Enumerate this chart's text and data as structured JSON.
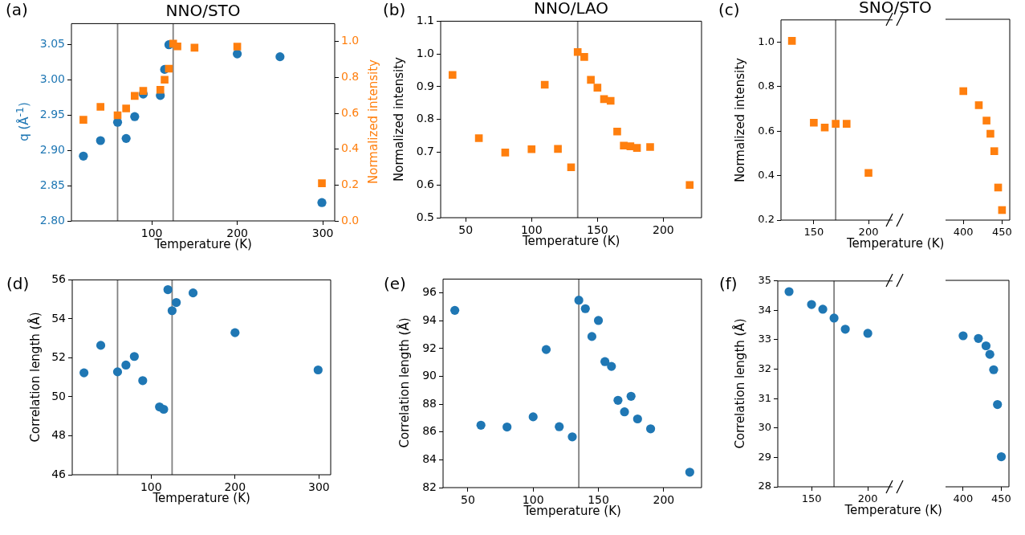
{
  "chart_data": [
    {
      "type": "scatter",
      "title": "NNO/STO",
      "xlabel": "Temperature (K)",
      "ylabel": "q (Å$^{-1}$)",
      "y2label": "Normalized intensity",
      "annotations": [
        "(a)"
      ],
      "xlim": [
        6,
        314
      ],
      "xticks": [
        100,
        200,
        300
      ],
      "ylim": [
        2.8,
        3.08
      ],
      "yticks": [
        {
          "value": 2.8,
          "label": "2.80"
        },
        2.85,
        {
          "value": 2.9,
          "label": "2.90"
        },
        2.95,
        {
          "value": 3,
          "label": "3.00"
        },
        3.05
      ],
      "y2lim": [
        0,
        1.1
      ],
      "y2ticks": [
        {
          "value": 0,
          "label": "0.0"
        },
        0.2,
        0.4,
        0.6,
        0.8,
        {
          "value": 1,
          "label": "1.0"
        }
      ],
      "ref_lines": [
        {
          "axis": "x",
          "value": 60,
          "color": "#808080"
        },
        {
          "axis": "x",
          "value": 125,
          "color": "#808080"
        }
      ],
      "series": [
        {
          "color": "#1f77b4",
          "marker": "circle",
          "x": [
            20,
            40,
            60,
            70,
            80,
            90,
            110,
            115,
            120,
            150,
            200,
            250,
            299
          ],
          "values": [
            2.892,
            2.914,
            2.94,
            2.917,
            2.948,
            2.98,
            2.978,
            3.015,
            3.05,
            null,
            3.037,
            3.033,
            2.826
          ]
        },
        {
          "color": "#ff7f0e",
          "marker": "square",
          "axis": "y2",
          "x": [
            20,
            40,
            60,
            70,
            80,
            90,
            110,
            115,
            120,
            125,
            130,
            150,
            200,
            299
          ],
          "values": [
            0.564,
            0.636,
            0.589,
            0.627,
            0.697,
            0.725,
            0.731,
            0.787,
            0.849,
            0.988,
            0.973,
            0.966,
            0.972,
            0.21
          ]
        }
      ]
    },
    {
      "type": "scatter",
      "title": "NNO/LAO",
      "xlabel": "Temperature (K)",
      "ylabel": "Normalized intensity",
      "annotations": [
        "(b)"
      ],
      "xlim": [
        31,
        229
      ],
      "xticks": [
        50,
        100,
        150,
        200
      ],
      "ylim": [
        0.5,
        1.1
      ],
      "yticks": [
        0.5,
        0.6,
        0.7,
        0.8,
        0.9,
        {
          "value": 1,
          "label": "1.0"
        },
        1.1
      ],
      "ref_lines": [
        {
          "axis": "x",
          "value": 135,
          "color": "#808080"
        }
      ],
      "x": [
        40,
        60,
        80,
        100,
        110,
        120,
        130,
        135,
        140,
        145,
        150,
        155,
        160,
        165,
        170,
        175,
        180,
        190,
        220
      ],
      "series": [
        {
          "color": "#ff7f0e",
          "marker": "square",
          "values": [
            0.936,
            0.743,
            0.699,
            0.709,
            0.906,
            0.71,
            0.654,
            1.006,
            0.991,
            0.921,
            0.897,
            0.862,
            0.857,
            0.763,
            0.72,
            0.718,
            0.713,
            0.716,
            0.6
          ]
        }
      ]
    },
    {
      "type": "scatter",
      "title": "SNO/STO",
      "xlabel": "Temperature (K)",
      "ylabel": "Normalized intensity",
      "annotations": [
        "(c)"
      ],
      "xlim": [
        120,
        222
      ],
      "xticks": [
        150,
        200
      ],
      "ylim": [
        0.2,
        1.1
      ],
      "yticks": [
        0.2,
        0.4,
        0.6,
        0.8,
        {
          "value": 1,
          "label": "1.0"
        }
      ],
      "ref_lines": [
        {
          "axis": "x",
          "value": 170,
          "color": "#808080"
        }
      ],
      "x": [
        130,
        150,
        160,
        170,
        180,
        200
      ],
      "series": [
        {
          "color": "#ff7f0e",
          "marker": "square",
          "values": [
            1.006,
            0.638,
            0.616,
            0.633,
            0.633,
            0.412
          ]
        }
      ]
    },
    {
      "type": "scatter",
      "tick_labels": "x",
      "xlim": [
        377,
        460
      ],
      "xticks": [
        400,
        450
      ],
      "ylim": [
        0.2,
        1.1
      ],
      "x": [
        400,
        420,
        430,
        435,
        440,
        445,
        450
      ],
      "series": [
        {
          "color": "#ff7f0e",
          "marker": "square",
          "values": [
            0.778,
            0.715,
            0.646,
            0.587,
            0.509,
            0.346,
            0.245
          ]
        }
      ]
    },
    {
      "type": "scatter",
      "xlabel": "Temperature (K)",
      "ylabel": "Correlation length (Å)",
      "annotations": [
        "(d)"
      ],
      "xlim": [
        6,
        314
      ],
      "xticks": [
        100,
        200,
        300
      ],
      "ylim": [
        46,
        56
      ],
      "yticks": [
        46,
        48,
        50,
        52,
        54,
        56
      ],
      "ref_lines": [
        {
          "axis": "x",
          "value": 60,
          "color": "#808080"
        },
        {
          "axis": "x",
          "value": 125,
          "color": "#808080"
        }
      ],
      "x": [
        20,
        40,
        60,
        70,
        80,
        90,
        110,
        115,
        120,
        125,
        130,
        150,
        200,
        299
      ],
      "series": [
        {
          "color": "#1f77b4",
          "marker": "circle",
          "values": [
            51.23,
            52.64,
            51.28,
            51.63,
            52.07,
            50.83,
            49.48,
            49.36,
            55.5,
            54.42,
            54.84,
            55.33,
            53.29,
            51.38
          ]
        }
      ]
    },
    {
      "type": "scatter",
      "xlabel": "Temperature (K)",
      "ylabel": "Correlation length (Å)",
      "annotations": [
        "(e)"
      ],
      "xlim": [
        31,
        229
      ],
      "xticks": [
        50,
        100,
        150,
        200
      ],
      "ylim": [
        82,
        97
      ],
      "yticks": [
        82,
        84,
        86,
        88,
        90,
        92,
        94,
        96
      ],
      "ref_lines": [
        {
          "axis": "x",
          "value": 135,
          "color": "#808080"
        }
      ],
      "x": [
        40,
        60,
        80,
        100,
        110,
        120,
        130,
        135,
        140,
        145,
        150,
        155,
        160,
        165,
        170,
        175,
        180,
        190,
        220
      ],
      "series": [
        {
          "color": "#1f77b4",
          "marker": "circle",
          "values": [
            94.75,
            86.49,
            86.36,
            87.09,
            91.93,
            86.38,
            85.65,
            95.48,
            94.87,
            92.87,
            94.02,
            91.06,
            90.72,
            88.28,
            87.45,
            88.57,
            86.94,
            86.23,
            83.11
          ]
        }
      ]
    },
    {
      "type": "scatter",
      "xlabel": "Temperature (K)",
      "ylabel": "Correlation length (Å)",
      "annotations": [
        "(f)"
      ],
      "xlim": [
        120,
        222
      ],
      "xticks": [
        150,
        200
      ],
      "ylim": [
        28,
        35
      ],
      "yticks": [
        28,
        29,
        30,
        31,
        32,
        33,
        34,
        35
      ],
      "ref_lines": [
        {
          "axis": "x",
          "value": 170,
          "color": "#808080"
        }
      ],
      "x": [
        130,
        150,
        160,
        170,
        180,
        200
      ],
      "series": [
        {
          "color": "#1f77b4",
          "marker": "circle",
          "values": [
            34.64,
            34.2,
            34.04,
            33.74,
            33.36,
            33.22
          ]
        }
      ]
    },
    {
      "type": "scatter",
      "tick_labels": "x",
      "xlim": [
        377,
        460
      ],
      "xticks": [
        400,
        450
      ],
      "ylim": [
        28,
        35
      ],
      "x": [
        400,
        420,
        430,
        435,
        440,
        445,
        450
      ],
      "series": [
        {
          "color": "#1f77b4",
          "marker": "circle",
          "values": [
            33.12,
            33.03,
            32.78,
            32.49,
            31.97,
            30.79,
            29.02
          ]
        }
      ]
    }
  ]
}
